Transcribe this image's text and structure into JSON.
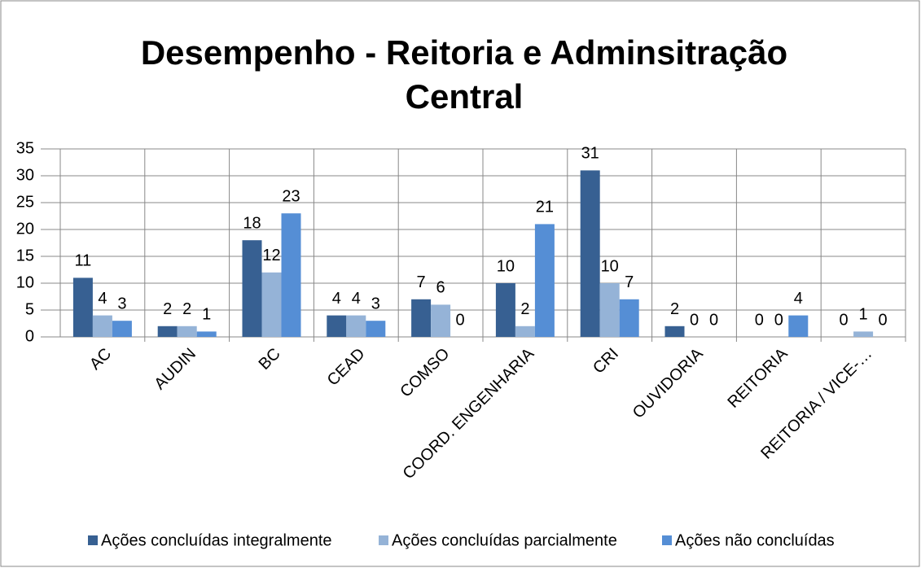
{
  "chart_data": {
    "type": "bar",
    "title": "Desempenho - Reitoria e Adminsitração Central",
    "categories": [
      "AC",
      "AUDIN",
      "BC",
      "CEAD",
      "COMSO",
      "COORD. ENGENHARIA",
      "CRI",
      "OUVIDORIA",
      "REITORIA",
      "REITORIA / VICE-…"
    ],
    "series": [
      {
        "name": "Ações concluídas integralmente",
        "color": "#376092",
        "values": [
          11,
          2,
          18,
          4,
          7,
          10,
          31,
          2,
          0,
          0
        ]
      },
      {
        "name": "Ações concluídas parcialmente",
        "color": "#95b3d7",
        "values": [
          4,
          2,
          12,
          4,
          6,
          2,
          10,
          0,
          0,
          1
        ]
      },
      {
        "name": "Ações não concluídas",
        "color": "#558ed5",
        "values": [
          3,
          1,
          23,
          3,
          0,
          21,
          7,
          0,
          4,
          0
        ]
      }
    ],
    "ylim": [
      0,
      35
    ],
    "yticks": [
      0,
      5,
      10,
      15,
      20,
      25,
      30,
      35
    ],
    "grid": true,
    "legend": "bottom"
  }
}
